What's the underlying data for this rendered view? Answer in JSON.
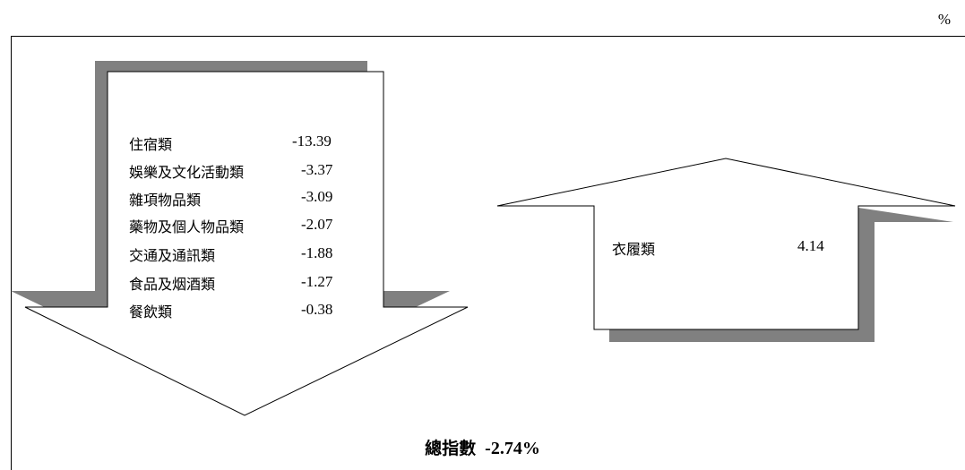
{
  "unit_label": "%",
  "chart_data": {
    "type": "table",
    "decreases": [
      {
        "category": "住宿類",
        "value": -13.39
      },
      {
        "category": "娛樂及文化活動類",
        "value": -3.37
      },
      {
        "category": "雜項物品類",
        "value": -3.09
      },
      {
        "category": "藥物及個人物品類",
        "value": -2.07
      },
      {
        "category": "交通及通訊類",
        "value": -1.88
      },
      {
        "category": "食品及烟酒類",
        "value": -1.27
      },
      {
        "category": "餐飲類",
        "value": -0.38
      }
    ],
    "increases": [
      {
        "category": "衣履類",
        "value": 4.14
      }
    ],
    "total": {
      "label": "總指數",
      "value": "-2.74%"
    }
  },
  "colors": {
    "shadow": "#808080",
    "outline": "#000000",
    "fill": "#ffffff"
  }
}
